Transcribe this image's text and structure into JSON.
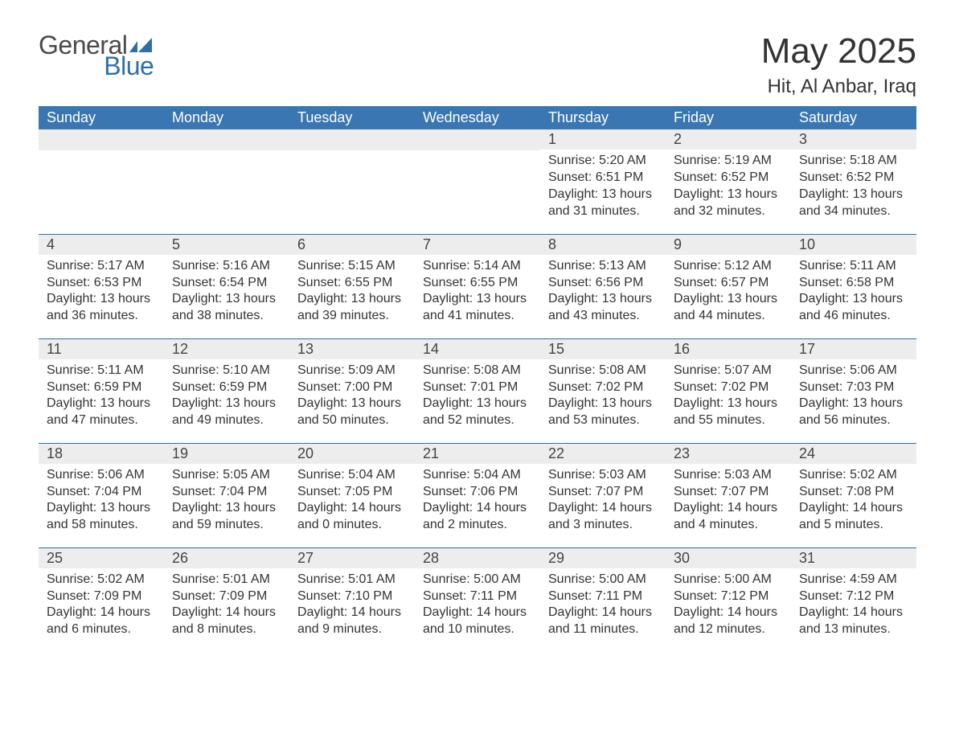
{
  "logo": {
    "text1": "General",
    "text2": "Blue",
    "flag_color": "#2f6fa7"
  },
  "title": "May 2025",
  "location": "Hit, Al Anbar, Iraq",
  "colors": {
    "header_bg": "#3a76b1",
    "header_text": "#ffffff",
    "row_sep": "#2f6fa7",
    "daynum_bg": "#ededed",
    "body_text": "#333333"
  },
  "day_labels": [
    "Sunday",
    "Monday",
    "Tuesday",
    "Wednesday",
    "Thursday",
    "Friday",
    "Saturday"
  ],
  "weeks": [
    [
      {
        "n": "",
        "sunrise": "",
        "sunset": "",
        "daylight": ""
      },
      {
        "n": "",
        "sunrise": "",
        "sunset": "",
        "daylight": ""
      },
      {
        "n": "",
        "sunrise": "",
        "sunset": "",
        "daylight": ""
      },
      {
        "n": "",
        "sunrise": "",
        "sunset": "",
        "daylight": ""
      },
      {
        "n": "1",
        "sunrise": "5:20 AM",
        "sunset": "6:51 PM",
        "daylight": "13 hours and 31 minutes."
      },
      {
        "n": "2",
        "sunrise": "5:19 AM",
        "sunset": "6:52 PM",
        "daylight": "13 hours and 32 minutes."
      },
      {
        "n": "3",
        "sunrise": "5:18 AM",
        "sunset": "6:52 PM",
        "daylight": "13 hours and 34 minutes."
      }
    ],
    [
      {
        "n": "4",
        "sunrise": "5:17 AM",
        "sunset": "6:53 PM",
        "daylight": "13 hours and 36 minutes."
      },
      {
        "n": "5",
        "sunrise": "5:16 AM",
        "sunset": "6:54 PM",
        "daylight": "13 hours and 38 minutes."
      },
      {
        "n": "6",
        "sunrise": "5:15 AM",
        "sunset": "6:55 PM",
        "daylight": "13 hours and 39 minutes."
      },
      {
        "n": "7",
        "sunrise": "5:14 AM",
        "sunset": "6:55 PM",
        "daylight": "13 hours and 41 minutes."
      },
      {
        "n": "8",
        "sunrise": "5:13 AM",
        "sunset": "6:56 PM",
        "daylight": "13 hours and 43 minutes."
      },
      {
        "n": "9",
        "sunrise": "5:12 AM",
        "sunset": "6:57 PM",
        "daylight": "13 hours and 44 minutes."
      },
      {
        "n": "10",
        "sunrise": "5:11 AM",
        "sunset": "6:58 PM",
        "daylight": "13 hours and 46 minutes."
      }
    ],
    [
      {
        "n": "11",
        "sunrise": "5:11 AM",
        "sunset": "6:59 PM",
        "daylight": "13 hours and 47 minutes."
      },
      {
        "n": "12",
        "sunrise": "5:10 AM",
        "sunset": "6:59 PM",
        "daylight": "13 hours and 49 minutes."
      },
      {
        "n": "13",
        "sunrise": "5:09 AM",
        "sunset": "7:00 PM",
        "daylight": "13 hours and 50 minutes."
      },
      {
        "n": "14",
        "sunrise": "5:08 AM",
        "sunset": "7:01 PM",
        "daylight": "13 hours and 52 minutes."
      },
      {
        "n": "15",
        "sunrise": "5:08 AM",
        "sunset": "7:02 PM",
        "daylight": "13 hours and 53 minutes."
      },
      {
        "n": "16",
        "sunrise": "5:07 AM",
        "sunset": "7:02 PM",
        "daylight": "13 hours and 55 minutes."
      },
      {
        "n": "17",
        "sunrise": "5:06 AM",
        "sunset": "7:03 PM",
        "daylight": "13 hours and 56 minutes."
      }
    ],
    [
      {
        "n": "18",
        "sunrise": "5:06 AM",
        "sunset": "7:04 PM",
        "daylight": "13 hours and 58 minutes."
      },
      {
        "n": "19",
        "sunrise": "5:05 AM",
        "sunset": "7:04 PM",
        "daylight": "13 hours and 59 minutes."
      },
      {
        "n": "20",
        "sunrise": "5:04 AM",
        "sunset": "7:05 PM",
        "daylight": "14 hours and 0 minutes."
      },
      {
        "n": "21",
        "sunrise": "5:04 AM",
        "sunset": "7:06 PM",
        "daylight": "14 hours and 2 minutes."
      },
      {
        "n": "22",
        "sunrise": "5:03 AM",
        "sunset": "7:07 PM",
        "daylight": "14 hours and 3 minutes."
      },
      {
        "n": "23",
        "sunrise": "5:03 AM",
        "sunset": "7:07 PM",
        "daylight": "14 hours and 4 minutes."
      },
      {
        "n": "24",
        "sunrise": "5:02 AM",
        "sunset": "7:08 PM",
        "daylight": "14 hours and 5 minutes."
      }
    ],
    [
      {
        "n": "25",
        "sunrise": "5:02 AM",
        "sunset": "7:09 PM",
        "daylight": "14 hours and 6 minutes."
      },
      {
        "n": "26",
        "sunrise": "5:01 AM",
        "sunset": "7:09 PM",
        "daylight": "14 hours and 8 minutes."
      },
      {
        "n": "27",
        "sunrise": "5:01 AM",
        "sunset": "7:10 PM",
        "daylight": "14 hours and 9 minutes."
      },
      {
        "n": "28",
        "sunrise": "5:00 AM",
        "sunset": "7:11 PM",
        "daylight": "14 hours and 10 minutes."
      },
      {
        "n": "29",
        "sunrise": "5:00 AM",
        "sunset": "7:11 PM",
        "daylight": "14 hours and 11 minutes."
      },
      {
        "n": "30",
        "sunrise": "5:00 AM",
        "sunset": "7:12 PM",
        "daylight": "14 hours and 12 minutes."
      },
      {
        "n": "31",
        "sunrise": "4:59 AM",
        "sunset": "7:12 PM",
        "daylight": "14 hours and 13 minutes."
      }
    ]
  ],
  "labels": {
    "sunrise": "Sunrise",
    "sunset": "Sunset",
    "daylight": "Daylight"
  }
}
